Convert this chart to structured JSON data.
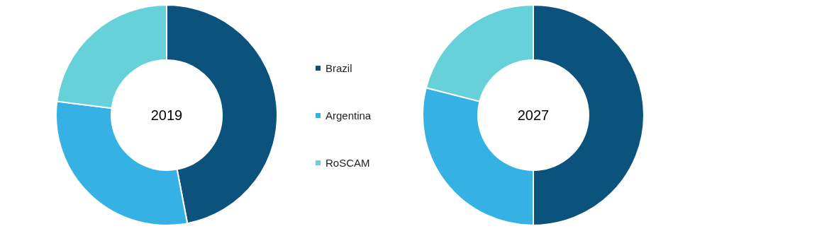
{
  "chart_data": [
    {
      "type": "donut",
      "title": "2019",
      "categories": [
        "Brazil",
        "Argentina",
        "RoSCAM"
      ],
      "values": [
        47,
        30,
        23
      ],
      "colors": [
        "#0b527d",
        "#36b1e3",
        "#66d1d9"
      ],
      "legend": "right"
    },
    {
      "type": "donut",
      "title": "2027",
      "categories": [
        null,
        null,
        null
      ],
      "values": [
        50,
        29,
        21
      ],
      "colors": [
        "#0b527d",
        "#36b1e3",
        "#66d1d9"
      ]
    }
  ]
}
